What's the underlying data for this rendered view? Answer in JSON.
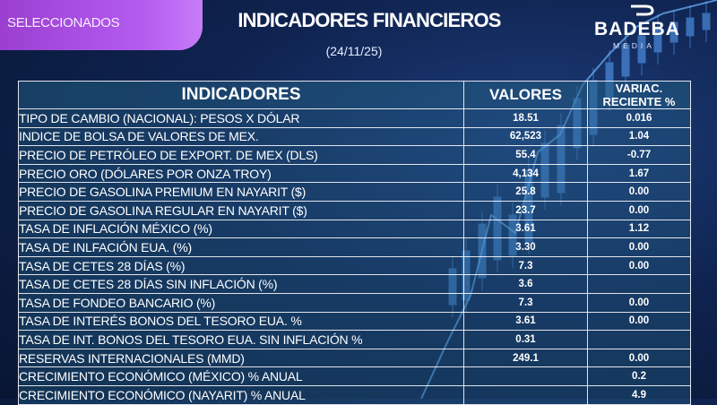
{
  "tag": {
    "label": "SELECCIONADOS"
  },
  "header": {
    "title": "INDICADORES FINANCIEROS",
    "date": "(24/11/25)"
  },
  "logo": {
    "brand": "BADEBA",
    "sub": "MEDIA"
  },
  "table": {
    "headers": {
      "name": "INDICADORES",
      "value": "VALORES",
      "change_line1": "VARIAC.",
      "change_line2": "RECIENTE %"
    },
    "rows": [
      {
        "name": "TIPO DE CAMBIO (NACIONAL): PESOS X DÓLAR",
        "value": "18.51",
        "change": "0.016"
      },
      {
        "name": "INDICE DE BOLSA DE VALORES DE MEX.",
        "value": "62,523",
        "change": "1.04"
      },
      {
        "name": "PRECIO DE PETRÓLEO DE EXPORT. DE MEX (DLS)",
        "value": "55.4",
        "change": "-0.77",
        "negative": true
      },
      {
        "name": "PRECIO ORO (DÓLARES POR ONZA TROY)",
        "value": "4,134",
        "change": "1.67"
      },
      {
        "name": "PRECIO DE GASOLINA PREMIUM EN NAYARIT ($)",
        "value": "25.8",
        "change": "0.00"
      },
      {
        "name": "PRECIO DE GASOLINA REGULAR EN NAYARIT ($)",
        "value": "23.7",
        "change": "0.00"
      },
      {
        "name": "TASA DE INFLACIÓN MÉXICO (%)",
        "value": "3.61",
        "change": "1.12"
      },
      {
        "name": "TASA DE INLFACIÓN EUA. (%)",
        "value": "3.30",
        "change": "0.00"
      },
      {
        "name": "TASA DE CETES 28 DÍAS (%)",
        "value": "7.3",
        "change": "0.00"
      },
      {
        "name": "TASA DE CETES 28 DÍAS SIN INFLACIÓN (%)",
        "value": "3.6",
        "change": ""
      },
      {
        "name": "TASA DE FONDEO BANCARIO (%)",
        "value": "7.3",
        "change": "0.00"
      },
      {
        "name": "TASA DE INTERÉS BONOS DEL TESORO EUA. %",
        "value": "3.61",
        "change": "0.00"
      },
      {
        "name": "TASA DE INT. BONOS DEL TESORO  EUA. SIN INFLACIÓN %",
        "value": "0.31",
        "change": ""
      },
      {
        "name": "RESERVAS INTERNACIONALES (MMD)",
        "value": "249.1",
        "change": "0.00"
      },
      {
        "name": "CRECIMIENTO ECONÓMICO (MÉXICO) % ANUAL",
        "value": "",
        "change": "0.2"
      },
      {
        "name": "CRECIMIENTO ECONÓMICO (NAYARIT) % ANUAL",
        "value": "",
        "change": "4.9"
      }
    ]
  },
  "colors": {
    "accent": "#b45bf0",
    "negative": "#e23c3c",
    "background": "#0f2350"
  }
}
